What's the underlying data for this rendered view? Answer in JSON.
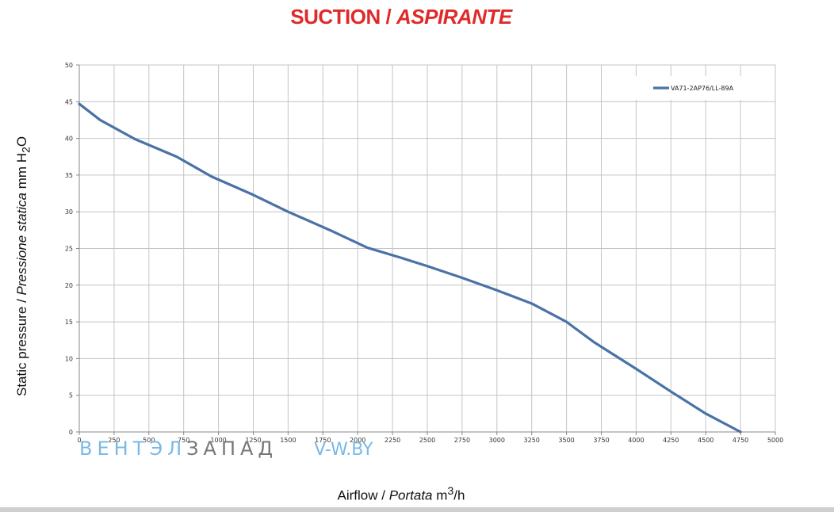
{
  "title": {
    "main": "SUCTION",
    "separator": " / ",
    "italic": "ASPIRANTE"
  },
  "ylabel": {
    "part1": "Static pressure / ",
    "part2": "Pressione statica",
    "part3": " mm H",
    "sub": "2",
    "part4": "O"
  },
  "xlabel": {
    "part1": "Airflow / ",
    "part2": "Portata",
    "part3": "  m",
    "sup": "3",
    "part4": "/h"
  },
  "watermark": {
    "part1": "ВЕНТЭЛ",
    "part2": "ЗАПАД",
    "part3": "V-W.BY"
  },
  "chart_data": {
    "type": "line",
    "title": "SUCTION / ASPIRANTE",
    "xlabel": "Airflow / Portata m3/h",
    "ylabel": "Static pressure / Pressione statica mm H2O",
    "xlim": [
      0,
      5000
    ],
    "ylim": [
      0,
      50
    ],
    "xticks": [
      0,
      250,
      500,
      750,
      1000,
      1250,
      1500,
      1750,
      2000,
      2250,
      2500,
      2750,
      3000,
      3250,
      3500,
      3750,
      4000,
      4250,
      4500,
      4750,
      5000
    ],
    "yticks": [
      0,
      5,
      10,
      15,
      20,
      25,
      30,
      35,
      40,
      45,
      50
    ],
    "grid": true,
    "legend_position": "top-right",
    "series": [
      {
        "name": "VA71-2AP76/LL-89A",
        "color": "#4a72a6",
        "x": [
          0,
          150,
          400,
          700,
          950,
          1250,
          1500,
          1800,
          2070,
          2300,
          2500,
          2750,
          3000,
          3250,
          3500,
          3700,
          4000,
          4250,
          4500,
          4750
        ],
        "y": [
          44.7,
          42.5,
          39.9,
          37.5,
          34.8,
          32.3,
          30.0,
          27.5,
          25.1,
          23.8,
          22.6,
          21.0,
          19.3,
          17.5,
          15.0,
          12.2,
          8.6,
          5.5,
          2.5,
          0
        ]
      }
    ]
  }
}
